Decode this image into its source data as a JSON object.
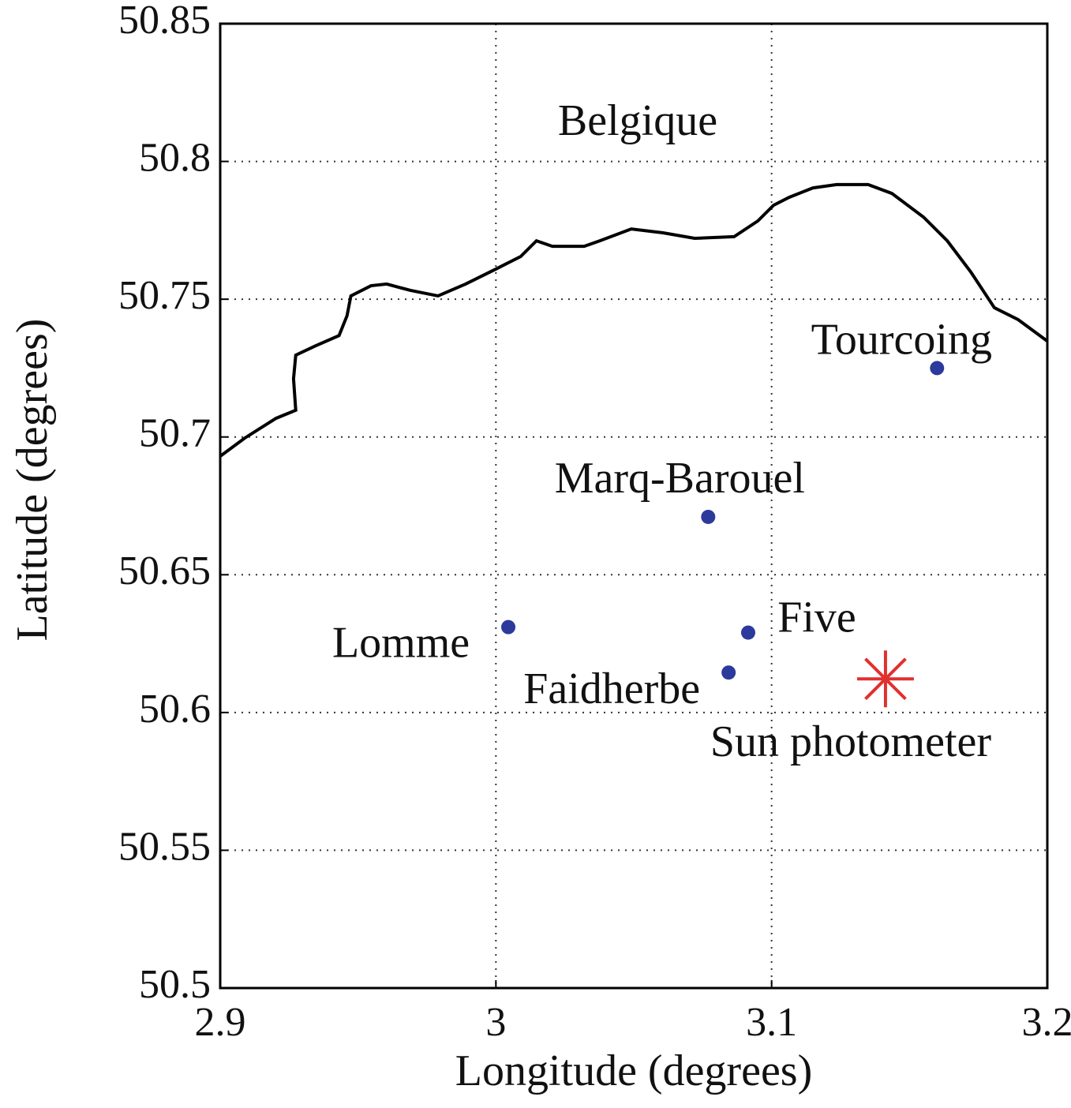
{
  "chart_data": {
    "type": "scatter",
    "xlabel": "Longitude (degrees)",
    "ylabel": "Latitude (degrees)",
    "xlim": [
      2.9,
      3.2
    ],
    "ylim": [
      50.5,
      50.85
    ],
    "xticks": [
      2.9,
      3,
      3.1,
      3.2
    ],
    "yticks": [
      50.5,
      50.55,
      50.6,
      50.65,
      50.7,
      50.75,
      50.8,
      50.85
    ],
    "grid": true,
    "annotations": [
      "Belgique"
    ],
    "series": [
      {
        "type": "line",
        "color": "#000000",
        "x": [
          2.9,
          2.9089,
          2.9203,
          2.9274,
          2.9266,
          2.9274,
          2.9346,
          2.9431,
          2.946,
          2.9474,
          2.9547,
          2.9604,
          2.969,
          2.979,
          2.989,
          3.0005,
          3.009,
          3.0147,
          3.0205,
          3.032,
          3.0377,
          3.0491,
          3.0606,
          3.0721,
          3.0864,
          3.095,
          3.1007,
          3.1064,
          3.115,
          3.1236,
          3.135,
          3.1436,
          3.1551,
          3.1637,
          3.1723,
          3.1808,
          3.1894,
          3.2
        ],
        "values": [
          50.693,
          50.6996,
          50.7068,
          50.7097,
          50.7211,
          50.7297,
          50.7331,
          50.7368,
          50.744,
          50.7512,
          50.7549,
          50.7555,
          50.7532,
          50.7512,
          50.7555,
          50.7612,
          50.7655,
          50.7712,
          50.7692,
          50.7692,
          50.7712,
          50.7755,
          50.7741,
          50.7721,
          50.7727,
          50.7784,
          50.7841,
          50.787,
          50.7904,
          50.7916,
          50.7916,
          50.7884,
          50.7798,
          50.7712,
          50.7598,
          50.7469,
          50.7426,
          50.7348
        ]
      },
      {
        "type": "points",
        "marker": "dot",
        "color": "#2b3a9b",
        "labels": [
          "Tourcoing",
          "Marq-Barouel",
          "Lomme",
          "Five",
          "Faidherbe"
        ],
        "x": [
          3.16,
          3.077,
          3.0045,
          3.0915,
          3.0844
        ],
        "values": [
          50.725,
          50.671,
          50.631,
          50.629,
          50.6145
        ]
      },
      {
        "type": "points",
        "marker": "star",
        "color": "#e03030",
        "labels": [
          "Sun photometer"
        ],
        "x": [
          3.1413
        ],
        "values": [
          50.6122
        ]
      }
    ]
  }
}
